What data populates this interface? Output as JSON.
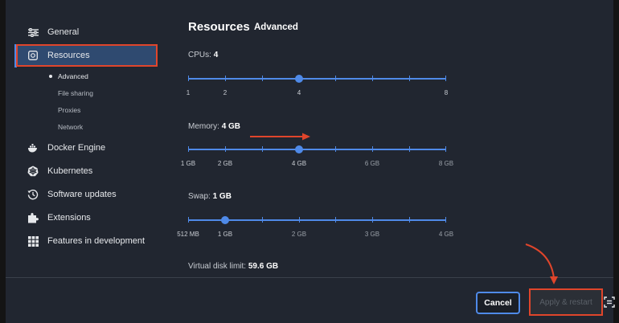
{
  "sidebar": {
    "items": [
      {
        "label": "General",
        "icon": "sliders-icon"
      },
      {
        "label": "Resources",
        "icon": "resources-icon"
      },
      {
        "label": "Docker Engine",
        "icon": "whale-icon"
      },
      {
        "label": "Kubernetes",
        "icon": "helm-icon"
      },
      {
        "label": "Software updates",
        "icon": "history-icon"
      },
      {
        "label": "Extensions",
        "icon": "puzzle-icon"
      },
      {
        "label": "Features in development",
        "icon": "grid-icon"
      }
    ],
    "subitems": [
      "Advanced",
      "File sharing",
      "Proxies",
      "Network"
    ]
  },
  "main": {
    "title": "Resources",
    "tab": "Advanced",
    "cpus": {
      "label": "CPUs:",
      "value": "4",
      "ticks": [
        "1",
        "2",
        "4",
        "8"
      ],
      "selected": 4
    },
    "memory": {
      "label": "Memory:",
      "value": "4 GB",
      "ticks": [
        "1 GB",
        "2 GB",
        "4 GB",
        "6 GB",
        "8 GB"
      ],
      "selected_gb": 4
    },
    "swap": {
      "label": "Swap:",
      "value": "1 GB",
      "ticks": [
        "512 MB",
        "1 GB",
        "2 GB",
        "3 GB",
        "4 GB"
      ],
      "selected_gb": 1
    },
    "disk": {
      "label": "Virtual disk limit:",
      "value": "59.6 GB"
    }
  },
  "footer": {
    "cancel_label": "Cancel",
    "apply_label": "Apply & restart"
  },
  "colors": {
    "accent": "#4f8ae8",
    "highlight": "#e0452b",
    "background": "#212630"
  }
}
